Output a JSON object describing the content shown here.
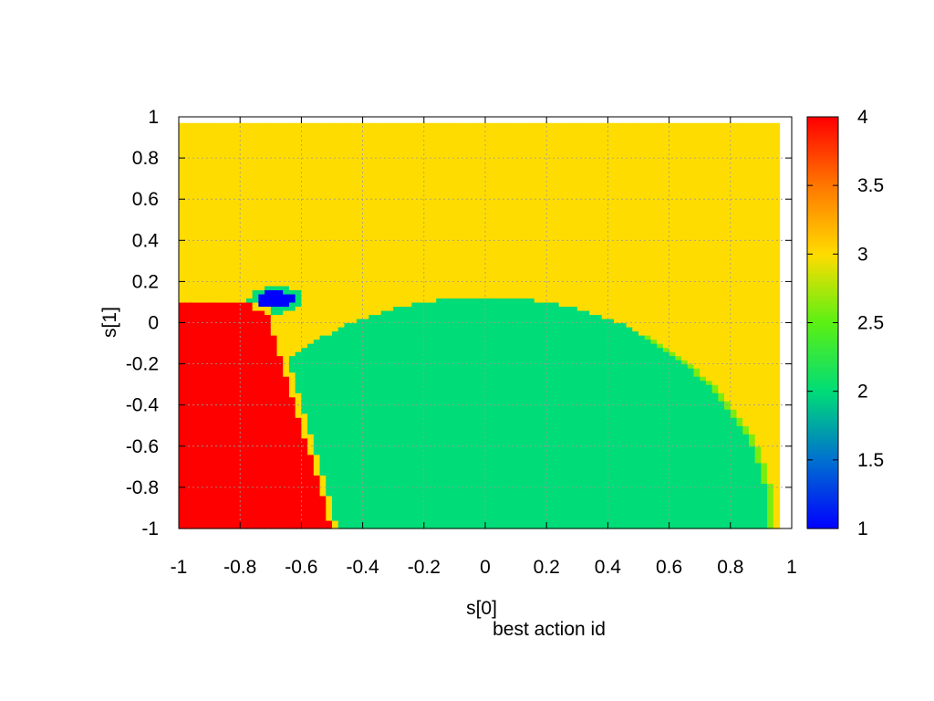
{
  "chart_data": {
    "type": "heatmap",
    "title": "",
    "xlabel": "s[0]",
    "ylabel": "s[1]",
    "caption": "best action id",
    "xlim": [
      -1,
      1
    ],
    "ylim": [
      -1,
      1
    ],
    "x_ticks": [
      "-1",
      "-0.8",
      "-0.6",
      "-0.4",
      "-0.2",
      "0",
      "0.2",
      "0.4",
      "0.6",
      "0.8",
      "1"
    ],
    "y_ticks": [
      "-1",
      "-0.8",
      "-0.6",
      "-0.4",
      "-0.2",
      "0",
      "0.2",
      "0.4",
      "0.6",
      "0.8",
      "1"
    ],
    "colorbar": {
      "min": 1,
      "max": 4,
      "ticks": [
        "1",
        "1.5",
        "2",
        "2.5",
        "3",
        "3.5",
        "4"
      ],
      "stops": [
        {
          "value": 1.0,
          "color": "#0000ff"
        },
        {
          "value": 1.5,
          "color": "#0070d0"
        },
        {
          "value": 2.0,
          "color": "#00dc78"
        },
        {
          "value": 2.5,
          "color": "#5af014"
        },
        {
          "value": 3.0,
          "color": "#ffdc00"
        },
        {
          "value": 3.5,
          "color": "#ff7800"
        },
        {
          "value": 4.0,
          "color": "#ff0000"
        }
      ]
    },
    "grid": true,
    "regions": [
      {
        "action_id": 3,
        "description": "upper region, s[1] above about 0.12; also right-hand margin of lower half"
      },
      {
        "action_id": 4,
        "description": "lower-left region bounded by s[0] about -0.7 at s[1]=0 down to about -0.5 at s[1]=-1"
      },
      {
        "action_id": 2,
        "description": "large lower semi-elliptical region, s[0] from about -0.67 to 0.95, s[1] from -1 up to about 0.13"
      },
      {
        "action_id": 1,
        "description": "small ellipse centred near s[0]=-0.68, s[1]=0.11"
      }
    ]
  }
}
